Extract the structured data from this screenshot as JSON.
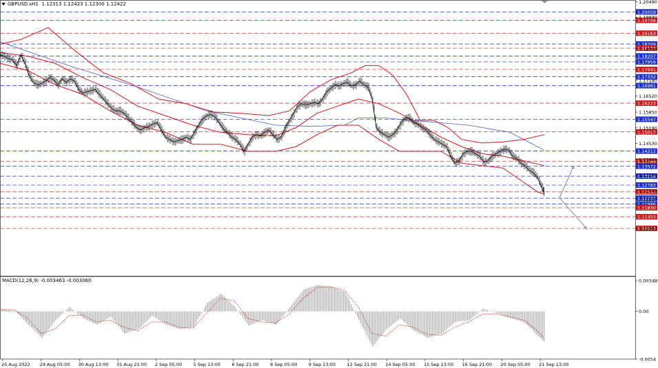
{
  "header": {
    "symbol_timeframe": "GBPUSD.sH1",
    "ohlc": "1.12313 1.12423 1.12300 1.12422"
  },
  "indicator_label": "MACD(12,26,9) -0.003463 -0.003060",
  "colors": {
    "price_line": "#000000",
    "bollinger": "#e0101a",
    "ma_long": "#4a5fd6",
    "level_blue": "#1a2fcc",
    "level_red": "#cc1a1a",
    "macd_hist": "#a0a0a0",
    "macd_signal": "#cc1a1a",
    "arrow": "#9a9a9a"
  },
  "chart_data": {
    "type": "line",
    "title": "",
    "ylim": [
      1.09,
      1.205
    ],
    "y_ticks": [
      "1.20490",
      "1.19830",
      "1.18500",
      "1.17180",
      "1.16520",
      "1.15850",
      "1.15190",
      "1.14530",
      "1.13860",
      "1.13200",
      "1.12540",
      "1.12210",
      "1.10963"
    ],
    "x_tick_labels": [
      "25 Aug 2022",
      "29 Aug 05:00",
      "30 Aug 13:00",
      "31 Aug 21:00",
      "2 Sep 05:00",
      "5 Sep 13:00",
      "6 Sep 21:00",
      "8 Sep 05:00",
      "9 Sep 13:00",
      "12 Sep 21:00",
      "14 Sep 05:00",
      "15 Sep 13:00",
      "16 Sep 21:00",
      "20 Sep 05:00",
      "21 Sep 13:00"
    ],
    "price_levels": [
      {
        "value": 1.20059,
        "label": "1.20059",
        "color": "blue"
      },
      {
        "value": 1.19706,
        "label": "1.19706",
        "color": "red"
      },
      {
        "value": 1.19163,
        "label": "1.19163",
        "color": "red"
      },
      {
        "value": 1.18709,
        "label": "1.18709",
        "color": "blue"
      },
      {
        "value": 1.18533,
        "label": "1.18533",
        "color": "red"
      },
      {
        "value": 1.18207,
        "label": "1.18207",
        "color": "blue"
      },
      {
        "value": 1.17959,
        "label": "1.17959",
        "color": "blue"
      },
      {
        "value": 1.17641,
        "label": "1.17641",
        "color": "red"
      },
      {
        "value": 1.17332,
        "label": "1.17332",
        "color": "blue"
      },
      {
        "value": 1.16961,
        "label": "1.16961",
        "color": "blue"
      },
      {
        "value": 1.16223,
        "label": "1.16223",
        "color": "red"
      },
      {
        "value": 1.15547,
        "label": "1.15547",
        "color": "blue"
      },
      {
        "value": 1.15017,
        "label": "1.15017",
        "color": "red"
      },
      {
        "value": 1.14212,
        "label": "1.14212",
        "color": "blue"
      },
      {
        "value": 1.13784,
        "label": "1.13784",
        "color": "red"
      },
      {
        "value": 1.13572,
        "label": "1.13572",
        "color": "blue"
      },
      {
        "value": 1.13158,
        "label": "1.13158",
        "color": "blue"
      },
      {
        "value": 1.12783,
        "label": "1.12783",
        "color": "blue"
      },
      {
        "value": 1.125,
        "label": "1.12500",
        "color": "red"
      },
      {
        "value": 1.12233,
        "label": "1.12233",
        "color": "blue"
      },
      {
        "value": 1.11986,
        "label": "1.11986",
        "color": "blue"
      },
      {
        "value": 1.1183,
        "label": "1.11830",
        "color": "red"
      },
      {
        "value": 1.11453,
        "label": "1.11453",
        "color": "red"
      },
      {
        "value": 1.10963,
        "label": "1.10963",
        "color": "red"
      }
    ],
    "price_series": {
      "x": [
        0,
        6,
        12,
        18,
        24,
        30,
        36,
        42,
        48,
        54,
        60,
        66,
        72,
        78,
        84,
        90,
        96,
        102,
        108,
        114,
        120,
        126,
        132,
        138,
        144,
        150,
        156,
        162,
        168,
        174,
        180,
        186,
        192,
        198,
        204,
        210,
        216,
        222,
        228,
        234,
        240,
        246,
        252,
        258,
        264,
        270,
        276,
        282,
        288,
        294,
        300,
        306,
        312,
        318,
        324,
        330,
        336,
        342,
        348,
        354,
        360,
        366,
        372,
        378,
        384,
        390,
        396,
        402,
        408,
        414,
        420,
        426,
        432,
        438,
        444,
        450,
        456,
        462,
        468,
        474,
        480,
        486,
        492,
        498,
        504,
        510,
        516,
        522,
        528,
        534,
        540,
        546,
        552,
        558,
        564,
        570,
        576,
        582,
        588,
        594,
        600,
        606,
        612,
        618,
        624,
        630,
        636,
        642,
        648,
        654,
        660,
        666,
        672,
        678,
        684,
        690,
        696,
        702,
        708,
        714,
        720,
        726,
        732,
        738,
        744,
        750,
        756,
        762,
        768,
        774,
        780,
        786,
        790
      ],
      "values": [
        1.1825,
        1.182,
        1.181,
        1.1805,
        1.178,
        1.1825,
        1.179,
        1.174,
        1.171,
        1.17,
        1.1705,
        1.1715,
        1.173,
        1.172,
        1.17,
        1.1725,
        1.171,
        1.1725,
        1.1715,
        1.168,
        1.1665,
        1.167,
        1.1675,
        1.168,
        1.166,
        1.164,
        1.162,
        1.16,
        1.159,
        1.159,
        1.158,
        1.156,
        1.154,
        1.152,
        1.151,
        1.152,
        1.1525,
        1.1535,
        1.154,
        1.151,
        1.148,
        1.147,
        1.146,
        1.1465,
        1.147,
        1.148,
        1.147,
        1.15,
        1.153,
        1.1555,
        1.157,
        1.1575,
        1.1565,
        1.154,
        1.1515,
        1.15,
        1.148,
        1.147,
        1.145,
        1.142,
        1.145,
        1.148,
        1.149,
        1.1485,
        1.15,
        1.151,
        1.149,
        1.147,
        1.148,
        1.152,
        1.155,
        1.158,
        1.161,
        1.162,
        1.1615,
        1.162,
        1.1625,
        1.162,
        1.164,
        1.167,
        1.1685,
        1.17,
        1.1695,
        1.1705,
        1.171,
        1.1695,
        1.17,
        1.1715,
        1.17,
        1.169,
        1.164,
        1.152,
        1.15,
        1.149,
        1.148,
        1.149,
        1.151,
        1.154,
        1.156,
        1.156,
        1.154,
        1.1535,
        1.152,
        1.151,
        1.149,
        1.147,
        1.146,
        1.145,
        1.144,
        1.14,
        1.137,
        1.138,
        1.141,
        1.142,
        1.142,
        1.141,
        1.14,
        1.1375,
        1.138,
        1.14,
        1.141,
        1.142,
        1.143,
        1.1425,
        1.14,
        1.139,
        1.137,
        1.136,
        1.134,
        1.133,
        1.131,
        1.127,
        1.1242
      ]
    },
    "ma_long": {
      "x": [
        0,
        100,
        200,
        300,
        400,
        450,
        500,
        520,
        560,
        620,
        680,
        740,
        790
      ],
      "values": [
        1.188,
        1.178,
        1.169,
        1.159,
        1.153,
        1.1525,
        1.153,
        1.156,
        1.156,
        1.1545,
        1.153,
        1.15,
        1.1425
      ]
    },
    "bollinger_upper": {
      "x": [
        0,
        30,
        70,
        110,
        150,
        190,
        230,
        270,
        310,
        350,
        390,
        420,
        450,
        480,
        510,
        530,
        550,
        570,
        590,
        610,
        630,
        650,
        670,
        700,
        730,
        760,
        790
      ],
      "values": [
        1.187,
        1.189,
        1.194,
        1.184,
        1.175,
        1.1705,
        1.164,
        1.162,
        1.1585,
        1.158,
        1.157,
        1.159,
        1.167,
        1.172,
        1.175,
        1.178,
        1.178,
        1.174,
        1.166,
        1.155,
        1.155,
        1.152,
        1.147,
        1.1455,
        1.146,
        1.147,
        1.149
      ]
    },
    "bollinger_mid": {
      "x": [
        0,
        40,
        80,
        120,
        160,
        200,
        240,
        280,
        320,
        360,
        400,
        430,
        460,
        490,
        520,
        550,
        580,
        610,
        640,
        670,
        700,
        730,
        760,
        790
      ],
      "values": [
        1.1835,
        1.182,
        1.179,
        1.173,
        1.168,
        1.161,
        1.157,
        1.153,
        1.15,
        1.149,
        1.1485,
        1.152,
        1.158,
        1.161,
        1.164,
        1.162,
        1.158,
        1.153,
        1.148,
        1.144,
        1.141,
        1.14,
        1.138,
        1.136
      ]
    },
    "bollinger_lower": {
      "x": [
        0,
        40,
        80,
        120,
        160,
        200,
        240,
        280,
        320,
        360,
        400,
        430,
        460,
        490,
        520,
        550,
        580,
        610,
        640,
        670,
        700,
        730,
        760,
        780,
        790
      ],
      "values": [
        1.179,
        1.176,
        1.17,
        1.166,
        1.159,
        1.153,
        1.15,
        1.145,
        1.145,
        1.142,
        1.142,
        1.144,
        1.149,
        1.153,
        1.153,
        1.147,
        1.142,
        1.142,
        1.142,
        1.137,
        1.136,
        1.135,
        1.129,
        1.125,
        1.124
      ]
    },
    "macd": {
      "ylim": [
        -0.0054,
        0.003485
      ],
      "y_ticks": [
        "0.003485",
        "0.00",
        "-0.0054"
      ],
      "x": [
        0,
        20,
        40,
        60,
        80,
        100,
        120,
        140,
        160,
        180,
        200,
        220,
        240,
        260,
        280,
        300,
        320,
        340,
        360,
        380,
        400,
        420,
        440,
        460,
        480,
        500,
        520,
        540,
        560,
        580,
        600,
        620,
        640,
        660,
        680,
        700,
        720,
        740,
        760,
        780,
        790
      ],
      "histogram": [
        0.0003,
        0.0001,
        -0.0015,
        -0.003,
        -0.001,
        0.0005,
        -0.0008,
        -0.0015,
        -0.0006,
        -0.0025,
        -0.002,
        -0.0005,
        -0.0015,
        -0.002,
        -0.0018,
        0.001,
        0.002,
        0.0005,
        -0.0016,
        -0.001,
        -0.0015,
        0.0005,
        0.0025,
        0.003,
        0.0028,
        0.0022,
        -0.001,
        -0.004,
        -0.002,
        -0.0008,
        -0.0022,
        -0.003,
        -0.0025,
        -0.0012,
        -0.001,
        0.0003,
        -0.0002,
        -0.0008,
        -0.0012,
        -0.0028,
        -0.0035
      ],
      "signal": [
        0.0002,
        0.0002,
        -0.0008,
        -0.0025,
        -0.002,
        -0.0005,
        -0.0004,
        -0.0012,
        -0.001,
        -0.0018,
        -0.0022,
        -0.0012,
        -0.0012,
        -0.0018,
        -0.0019,
        -0.0002,
        0.0015,
        0.0012,
        -0.0008,
        -0.0012,
        -0.0013,
        -0.0003,
        0.0015,
        0.0027,
        0.0028,
        0.0024,
        0.0005,
        -0.0025,
        -0.0028,
        -0.0015,
        -0.0018,
        -0.0026,
        -0.0027,
        -0.0018,
        -0.0012,
        -0.0003,
        -0.0003,
        -0.0006,
        -0.001,
        -0.0022,
        -0.0031
      ]
    }
  }
}
